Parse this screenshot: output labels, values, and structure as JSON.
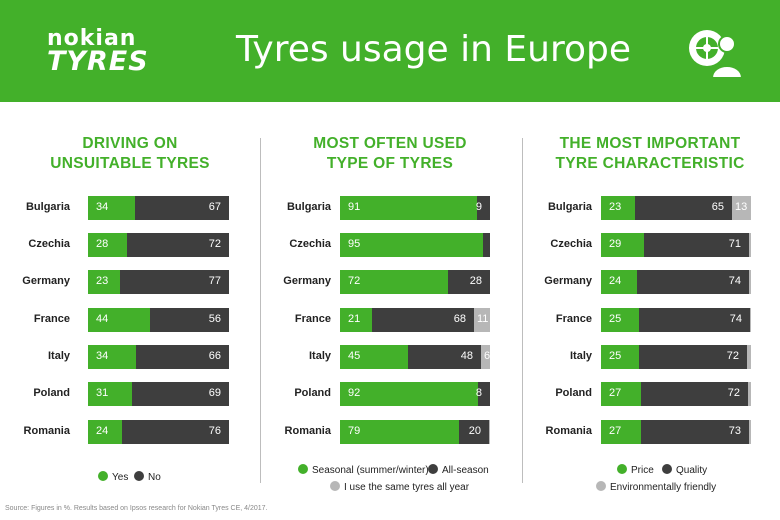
{
  "header": {
    "logo_top": "nokian",
    "logo_bottom": "TYRES",
    "title": "Tyres usage in Europe",
    "icon": "tyre-person-icon"
  },
  "colors": {
    "header": "#43b02a",
    "green": "#43b02a",
    "dark": "#3e3e3e",
    "light": "#b7b7b7"
  },
  "source": "Source: Figures in %. Results based on Ipsos research for Nokian Tyres CE, 4/2017.",
  "chart_data": [
    {
      "type": "bar",
      "orientation": "horizontal",
      "stacked": true,
      "title_line1": "DRIVING ON",
      "title_line2": "UNSUITABLE TYRES",
      "categories": [
        "Bulgaria",
        "Czechia",
        "Germany",
        "France",
        "Italy",
        "Poland",
        "Romania"
      ],
      "series": [
        {
          "name": "Yes",
          "color": "green",
          "values": [
            34,
            28,
            23,
            44,
            34,
            31,
            24
          ]
        },
        {
          "name": "No",
          "color": "dark",
          "values": [
            67,
            72,
            77,
            56,
            66,
            69,
            76
          ]
        }
      ]
    },
    {
      "type": "bar",
      "orientation": "horizontal",
      "stacked": true,
      "title_line1": "MOST OFTEN USED",
      "title_line2": "TYPE OF TYRES",
      "categories": [
        "Bulgaria",
        "Czechia",
        "Germany",
        "France",
        "Italy",
        "Poland",
        "Romania"
      ],
      "series": [
        {
          "name": "Seasonal (summer/winter)",
          "color": "green",
          "values": [
            91,
            95,
            72,
            21,
            45,
            92,
            79
          ]
        },
        {
          "name": "All-season",
          "color": "dark",
          "values": [
            9,
            5,
            28,
            68,
            48,
            8,
            20
          ]
        },
        {
          "name": "I use the same tyres all year",
          "color": "light",
          "values": [
            0,
            0,
            0,
            11,
            6,
            0,
            1
          ]
        }
      ],
      "labels": [
        [
          "91",
          "9",
          ""
        ],
        [
          "95",
          "5",
          ""
        ],
        [
          "72",
          "28",
          ""
        ],
        [
          "21",
          "68",
          "11"
        ],
        [
          "45",
          "48",
          "6"
        ],
        [
          "92",
          "8",
          ""
        ],
        [
          "79",
          "20",
          ""
        ]
      ]
    },
    {
      "type": "bar",
      "orientation": "horizontal",
      "stacked": true,
      "title_line1": "THE MOST IMPORTANT",
      "title_line2": "TYRE CHARACTERISTIC",
      "categories": [
        "Bulgaria",
        "Czechia",
        "Germany",
        "France",
        "Italy",
        "Poland",
        "Romania"
      ],
      "series": [
        {
          "name": "Price",
          "color": "green",
          "values": [
            23,
            29,
            24,
            25,
            25,
            27,
            27
          ]
        },
        {
          "name": "Quality",
          "color": "dark",
          "values": [
            65,
            71,
            74,
            74,
            72,
            72,
            73
          ]
        },
        {
          "name": "Environmentally friendly",
          "color": "light",
          "values": [
            13,
            1,
            1,
            1,
            3,
            2,
            1
          ]
        }
      ]
    }
  ]
}
